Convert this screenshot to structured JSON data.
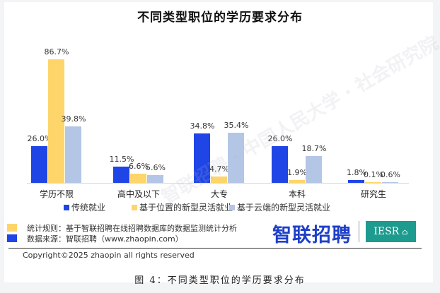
{
  "title": "不同类型职位的学历要求分布",
  "colors": {
    "traditional": "#1f45e6",
    "location_based": "#fdd56a",
    "cloud_based": "#b4c6e6",
    "iesr_bg": "#1d9b8e",
    "zhaopin_blue": "#1d3fc8"
  },
  "chart_data": {
    "type": "bar",
    "title": "不同类型职位的学历要求分布",
    "xlabel": "",
    "ylabel": "",
    "ylim": [
      0,
      100
    ],
    "grid": false,
    "legend_position": "bottom",
    "categories": [
      "学历不限",
      "高中及以下",
      "大专",
      "本科",
      "研究生"
    ],
    "series": [
      {
        "name": "传统就业",
        "values": [
          26.0,
          11.5,
          34.8,
          26.0,
          1.8
        ]
      },
      {
        "name": "基于位置的新型灵活就业",
        "values": [
          86.7,
          6.6,
          4.7,
          1.9,
          0.1
        ]
      },
      {
        "name": "基于云端的新型灵活就业",
        "values": [
          39.8,
          5.6,
          35.4,
          18.7,
          0.6
        ]
      }
    ],
    "labels": [
      [
        "26.0%",
        "86.7%",
        "39.8%"
      ],
      [
        "11.5%",
        "6.6%",
        "5.6%"
      ],
      [
        "34.8%",
        "4.7%",
        "35.4%"
      ],
      [
        "26.0%",
        "1.9%",
        "18.7%"
      ],
      [
        "1.8%",
        "0.1%",
        "0.6%"
      ]
    ]
  },
  "legend": {
    "items": [
      {
        "label": "传统就业"
      },
      {
        "label": "基于位置的新型灵活就业"
      },
      {
        "label": "基于云端的新型灵活就业"
      }
    ]
  },
  "notes": {
    "rule": "统计规则：基于智联招聘在线招聘数据库的数据监测统计分析",
    "source": "数据来源：智联招聘（www.zhaopin.com）"
  },
  "logos": {
    "zhaopin": "智联招聘",
    "iesr": "IESR"
  },
  "watermark": "智联招聘 · 中国人民大学 · 社会研究院",
  "copyright": "Copyright©2025 zhaopin all rights reserved",
  "caption": "图 4：不同类型职位的学历要求分布"
}
